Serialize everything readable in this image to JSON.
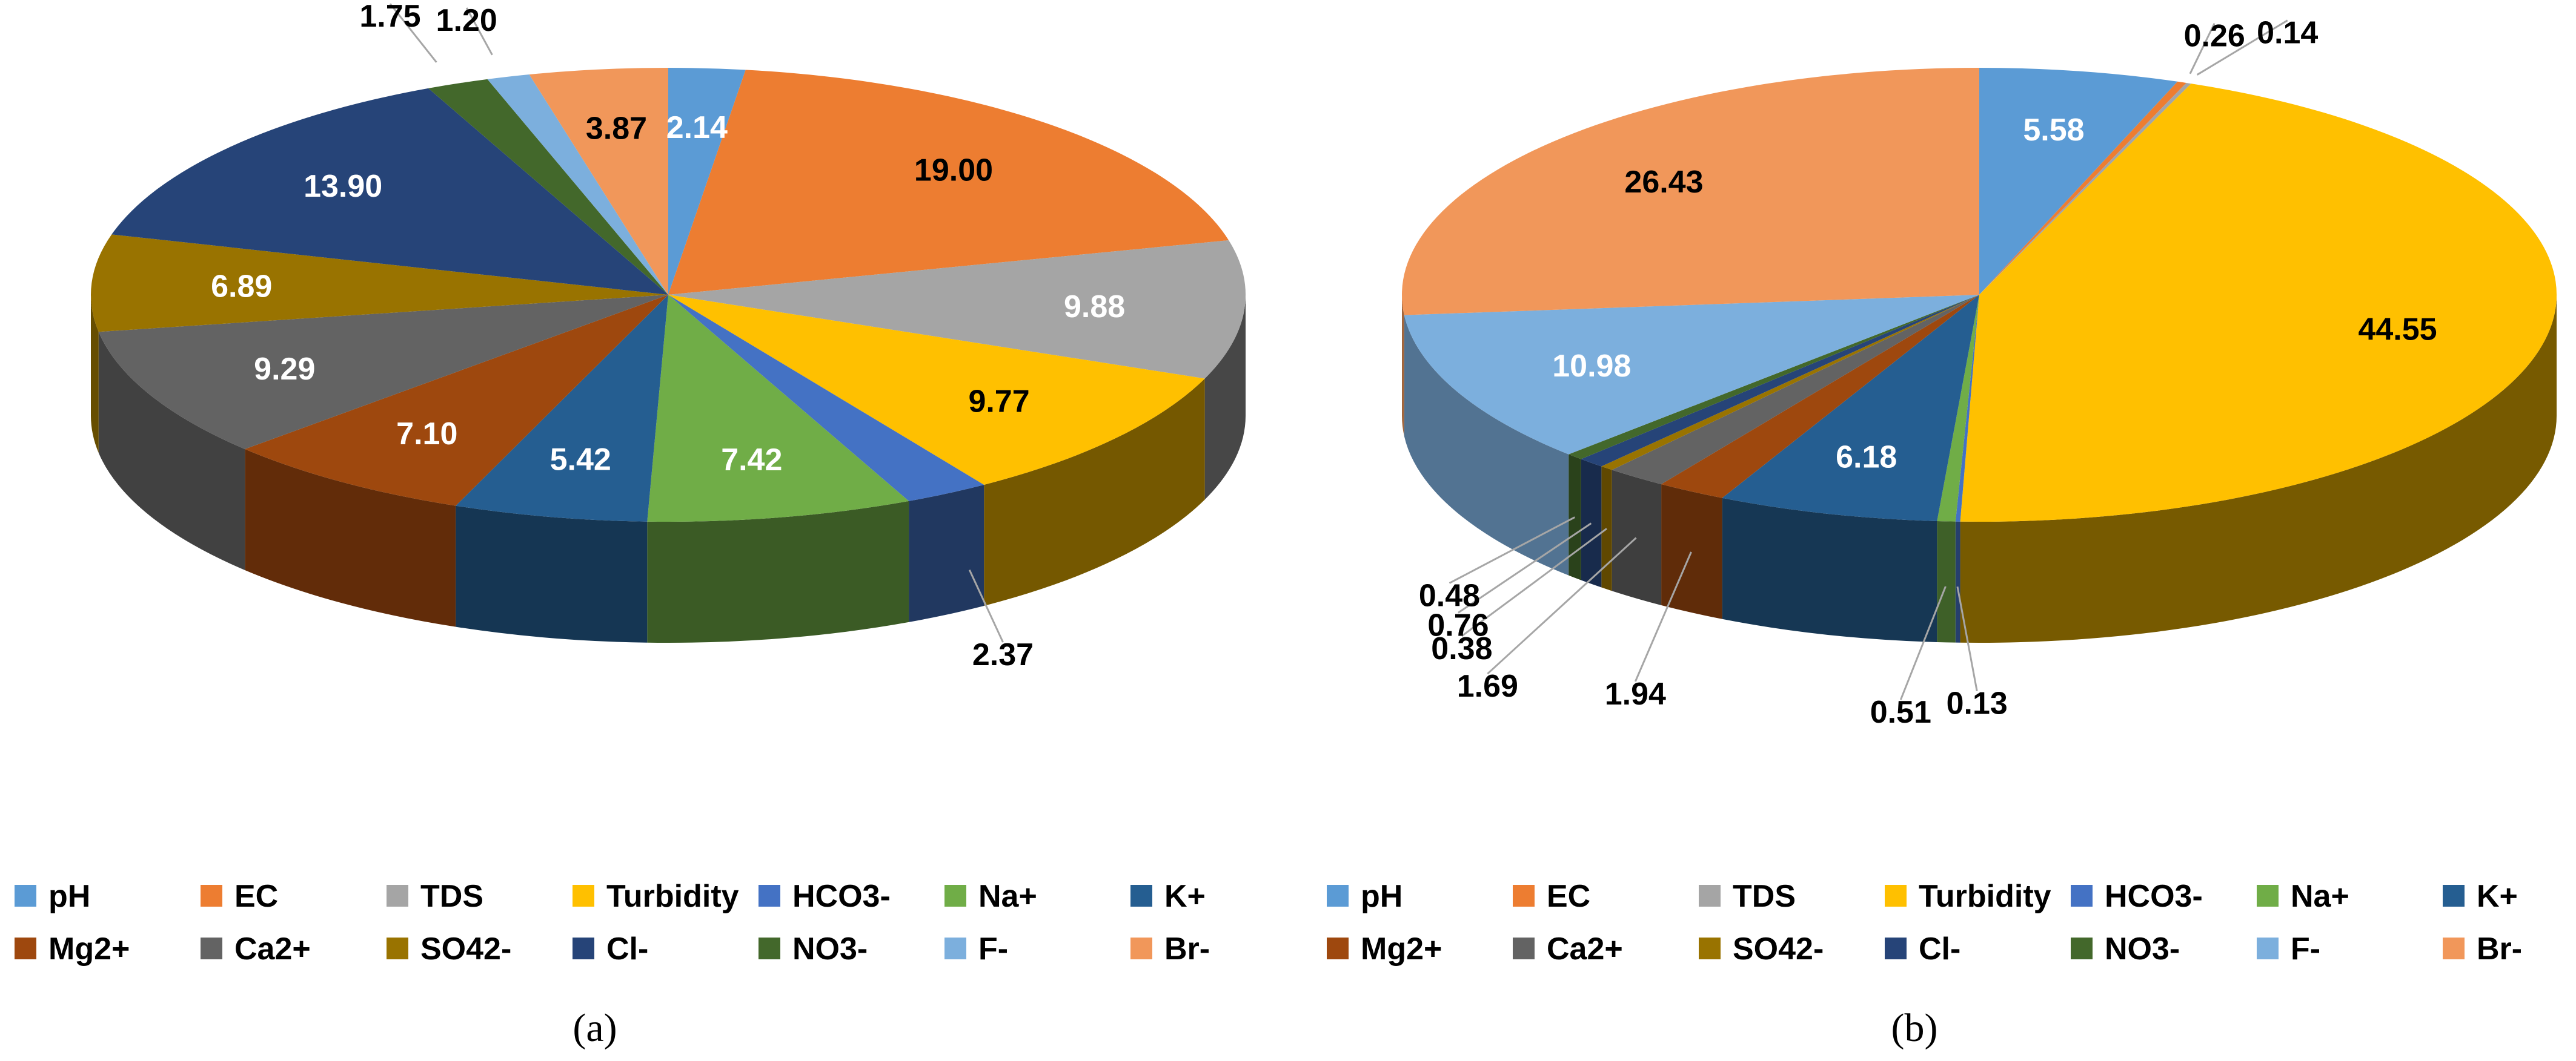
{
  "series_names": [
    "pH",
    "EC",
    "TDS",
    "Turbidity",
    "HCO3-",
    "Na+",
    "K+",
    "Mg2+",
    "Ca2+",
    "SO42-",
    "Cl-",
    "NO3-",
    "F-",
    "Br-"
  ],
  "palette": {
    "pH": "#5B9BD5",
    "EC": "#ED7D31",
    "TDS": "#A5A5A5",
    "Turbidity": "#FFC000",
    "HCO3-": "#4472C4",
    "Na+": "#70AD47",
    "K+": "#255E91",
    "Mg2+": "#9E480E",
    "Ca2+": "#636363",
    "SO42-": "#997300",
    "Cl-": "#264478",
    "NO3-": "#43682B",
    "F-": "#7CAFDD",
    "Br-": "#F1975A"
  },
  "chart_data": [
    {
      "type": "pie",
      "subplot_label": "(a)",
      "categories": [
        "pH",
        "EC",
        "TDS",
        "Turbidity",
        "HCO3-",
        "Na+",
        "K+",
        "Mg2+",
        "Ca2+",
        "SO42-",
        "Cl-",
        "NO3-",
        "F-",
        "Br-"
      ],
      "values": [
        2.14,
        19.0,
        9.88,
        9.77,
        2.37,
        7.42,
        5.42,
        7.1,
        9.29,
        6.89,
        13.9,
        1.75,
        1.2,
        3.87
      ],
      "labels": [
        "2.14",
        "19.00",
        "9.88",
        "9.77",
        "2.37",
        "7.42",
        "5.42",
        "7.10",
        "9.29",
        "6.89",
        "13.90",
        "1.75",
        "1.20",
        "3.87"
      ],
      "legend": [
        "pH",
        "EC",
        "TDS",
        "Turbidity",
        "HCO3-",
        "Na+",
        "K+",
        "Mg2+",
        "Ca2+",
        "SO42-",
        "Cl-",
        "NO3-",
        "F-",
        "Br-"
      ]
    },
    {
      "type": "pie",
      "subplot_label": "(b)",
      "categories": [
        "pH",
        "EC",
        "TDS",
        "Turbidity",
        "HCO3-",
        "Na+",
        "K+",
        "Mg2+",
        "Ca2+",
        "SO42-",
        "Cl-",
        "NO3-",
        "F-",
        "Br-"
      ],
      "values": [
        5.58,
        0.26,
        0.14,
        44.55,
        0.13,
        0.51,
        6.18,
        1.94,
        1.69,
        0.38,
        0.76,
        0.48,
        10.98,
        26.43
      ],
      "labels": [
        "5.58",
        "0.26",
        "0.14",
        "44.55",
        "0.13",
        "0.51",
        "6.18",
        "1.94",
        "1.69",
        "0.38",
        "0.76",
        "0.48",
        "10.98",
        "26.43"
      ],
      "legend": [
        "pH",
        "EC",
        "TDS",
        "Turbidity",
        "HCO3-",
        "Na+",
        "K+",
        "Mg2+",
        "Ca2+",
        "SO42-",
        "Cl-",
        "NO3-",
        "F-",
        "Br-"
      ]
    }
  ]
}
